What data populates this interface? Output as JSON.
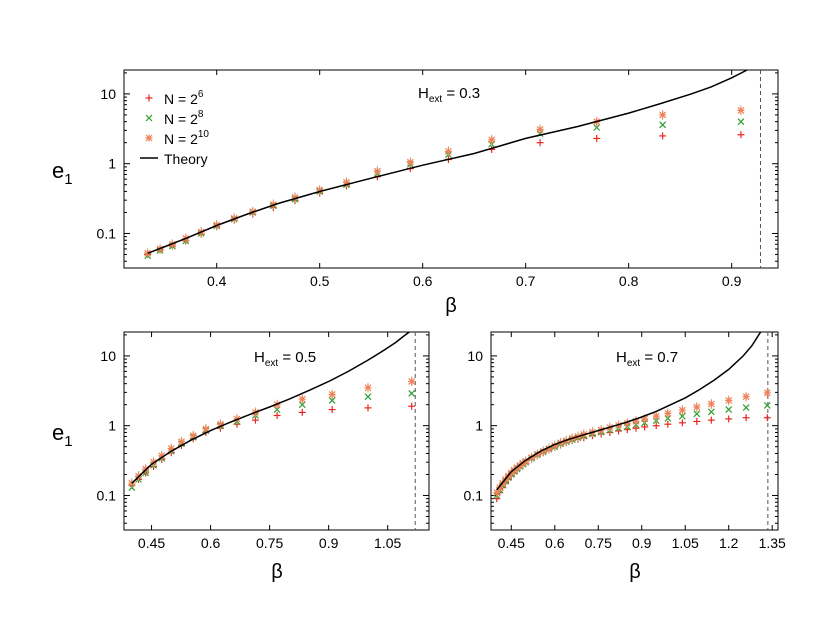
{
  "colors": {
    "n6": "#e8281e",
    "n8": "#2e9e2e",
    "n10": "#f08058",
    "theory": "#000000",
    "errorbar": "#c8a27a",
    "boundary": "#555555"
  },
  "ylabel": {
    "main": "e",
    "sub": "1"
  },
  "legend": [
    {
      "label": "N = 2",
      "sup": "6",
      "marker": "plus",
      "color": "#e8281e"
    },
    {
      "label": "N = 2",
      "sup": "8",
      "marker": "cross",
      "color": "#2e9e2e"
    },
    {
      "label": "N = 2",
      "sup": "10",
      "marker": "star",
      "color": "#f08058"
    },
    {
      "label": "Theory",
      "sup": "",
      "marker": "line",
      "color": "#000000"
    }
  ],
  "chart_data": [
    {
      "type": "scatter",
      "annotation": {
        "base": "H",
        "sub": "ext",
        "tail": " = 0.3"
      },
      "xlabel": "β",
      "ylabel": "e1",
      "yscale": "log",
      "xlim": [
        0.31,
        0.945
      ],
      "ylim": [
        0.032,
        22
      ],
      "xticks": [
        "0.4",
        "0.5",
        "0.6",
        "0.7",
        "0.8",
        "0.9"
      ],
      "yticks": [
        "0.1",
        "1",
        "10"
      ],
      "critical_beta": 0.928,
      "series": [
        {
          "name": "N = 2^6",
          "marker": "plus",
          "x": [
            0.333,
            0.345,
            0.357,
            0.37,
            0.385,
            0.4,
            0.417,
            0.435,
            0.455,
            0.476,
            0.5,
            0.526,
            0.556,
            0.588,
            0.625,
            0.667,
            0.714,
            0.769,
            0.833,
            0.909
          ],
          "y": [
            0.05,
            0.058,
            0.066,
            0.078,
            0.098,
            0.125,
            0.155,
            0.19,
            0.235,
            0.295,
            0.38,
            0.48,
            0.65,
            0.85,
            1.15,
            1.6,
            2.0,
            2.3,
            2.5,
            2.6
          ]
        },
        {
          "name": "N = 2^8",
          "marker": "cross",
          "x": [
            0.333,
            0.345,
            0.357,
            0.37,
            0.385,
            0.4,
            0.417,
            0.435,
            0.455,
            0.476,
            0.5,
            0.526,
            0.556,
            0.588,
            0.625,
            0.667,
            0.714,
            0.769,
            0.833,
            0.909
          ],
          "y": [
            0.048,
            0.057,
            0.066,
            0.078,
            0.1,
            0.128,
            0.16,
            0.2,
            0.25,
            0.31,
            0.4,
            0.5,
            0.72,
            0.98,
            1.35,
            1.9,
            2.7,
            3.3,
            3.6,
            4.0
          ]
        },
        {
          "name": "N = 2^10",
          "marker": "star",
          "x": [
            0.333,
            0.345,
            0.357,
            0.37,
            0.385,
            0.4,
            0.417,
            0.435,
            0.455,
            0.476,
            0.5,
            0.526,
            0.556,
            0.588,
            0.625,
            0.667,
            0.714,
            0.769,
            0.833,
            0.909
          ],
          "y": [
            0.052,
            0.06,
            0.07,
            0.085,
            0.105,
            0.132,
            0.165,
            0.205,
            0.26,
            0.33,
            0.42,
            0.54,
            0.78,
            1.05,
            1.5,
            2.2,
            3.1,
            4.0,
            5.0,
            5.8
          ]
        },
        {
          "name": "Theory",
          "marker": "line",
          "x": [
            0.333,
            0.35,
            0.37,
            0.4,
            0.43,
            0.46,
            0.5,
            0.55,
            0.6,
            0.65,
            0.7,
            0.75,
            0.8,
            0.83,
            0.86,
            0.88,
            0.9,
            0.915
          ],
          "y": [
            0.052,
            0.065,
            0.085,
            0.13,
            0.19,
            0.27,
            0.4,
            0.62,
            0.95,
            1.4,
            2.3,
            3.4,
            5.3,
            7.2,
            9.9,
            12.6,
            17.0,
            22
          ]
        }
      ]
    },
    {
      "type": "scatter",
      "annotation": {
        "base": "H",
        "sub": "ext",
        "tail": " = 0.5"
      },
      "xlabel": "β",
      "ylabel": "e1",
      "yscale": "log",
      "xlim": [
        0.38,
        1.155
      ],
      "ylim": [
        0.032,
        22
      ],
      "xticks": [
        "0.45",
        "0.6",
        "0.75",
        "0.9",
        "1.05"
      ],
      "yticks": [
        "0.1",
        "1",
        "10"
      ],
      "critical_beta": 1.12,
      "series": [
        {
          "name": "N = 2^6",
          "marker": "plus",
          "x": [
            0.4,
            0.417,
            0.435,
            0.455,
            0.476,
            0.5,
            0.526,
            0.556,
            0.588,
            0.625,
            0.667,
            0.714,
            0.769,
            0.833,
            0.909,
            1.0,
            1.111
          ],
          "y": [
            0.14,
            0.17,
            0.21,
            0.26,
            0.33,
            0.41,
            0.52,
            0.65,
            0.8,
            0.92,
            1.05,
            1.2,
            1.4,
            1.55,
            1.7,
            1.8,
            1.9
          ]
        },
        {
          "name": "N = 2^8",
          "marker": "cross",
          "x": [
            0.4,
            0.417,
            0.435,
            0.455,
            0.476,
            0.5,
            0.526,
            0.556,
            0.588,
            0.625,
            0.667,
            0.714,
            0.769,
            0.833,
            0.909,
            1.0,
            1.111
          ],
          "y": [
            0.13,
            0.17,
            0.21,
            0.27,
            0.34,
            0.43,
            0.55,
            0.68,
            0.85,
            1.0,
            1.15,
            1.4,
            1.7,
            2.0,
            2.3,
            2.6,
            2.9
          ]
        },
        {
          "name": "N = 2^10",
          "marker": "star",
          "x": [
            0.4,
            0.417,
            0.435,
            0.455,
            0.476,
            0.5,
            0.526,
            0.556,
            0.588,
            0.625,
            0.667,
            0.714,
            0.769,
            0.833,
            0.909,
            1.0,
            1.111
          ],
          "y": [
            0.15,
            0.19,
            0.24,
            0.3,
            0.37,
            0.47,
            0.59,
            0.72,
            0.9,
            1.05,
            1.25,
            1.55,
            2.0,
            2.4,
            2.8,
            3.5,
            4.3
          ]
        },
        {
          "name": "Theory",
          "marker": "line",
          "x": [
            0.4,
            0.45,
            0.5,
            0.55,
            0.6,
            0.65,
            0.7,
            0.75,
            0.8,
            0.85,
            0.9,
            0.95,
            1.0,
            1.04,
            1.07,
            1.09,
            1.105
          ],
          "y": [
            0.15,
            0.28,
            0.43,
            0.62,
            0.85,
            1.12,
            1.45,
            1.85,
            2.4,
            3.2,
            4.3,
            6.0,
            8.7,
            12.0,
            15.5,
            19.0,
            22
          ]
        }
      ]
    },
    {
      "type": "scatter",
      "annotation": {
        "base": "H",
        "sub": "ext",
        "tail": " = 0.7"
      },
      "xlabel": "β",
      "ylabel": "e1",
      "yscale": "log",
      "xlim": [
        0.38,
        1.37
      ],
      "ylim": [
        0.032,
        22
      ],
      "xticks": [
        "0.45",
        "0.6",
        "0.75",
        "0.9",
        "1.05",
        "1.2",
        "1.35"
      ],
      "yticks": [
        "0.1",
        "1",
        "10"
      ],
      "critical_beta": 1.335,
      "series": [
        {
          "name": "N = 2^6",
          "marker": "plus",
          "x": [
            0.4,
            0.41,
            0.42,
            0.43,
            0.44,
            0.45,
            0.46,
            0.47,
            0.48,
            0.49,
            0.5,
            0.52,
            0.54,
            0.56,
            0.58,
            0.6,
            0.62,
            0.64,
            0.66,
            0.68,
            0.7,
            0.73,
            0.76,
            0.79,
            0.82,
            0.85,
            0.88,
            0.91,
            0.95,
            0.99,
            1.04,
            1.09,
            1.14,
            1.2,
            1.26,
            1.333
          ],
          "y": [
            0.09,
            0.11,
            0.13,
            0.15,
            0.17,
            0.19,
            0.21,
            0.23,
            0.25,
            0.27,
            0.29,
            0.33,
            0.37,
            0.41,
            0.45,
            0.49,
            0.53,
            0.57,
            0.61,
            0.64,
            0.67,
            0.72,
            0.76,
            0.8,
            0.84,
            0.88,
            0.92,
            0.96,
            1.0,
            1.05,
            1.1,
            1.15,
            1.2,
            1.25,
            1.3,
            1.3
          ]
        },
        {
          "name": "N = 2^8",
          "marker": "cross",
          "x": [
            0.4,
            0.41,
            0.42,
            0.43,
            0.44,
            0.45,
            0.46,
            0.47,
            0.48,
            0.49,
            0.5,
            0.52,
            0.54,
            0.56,
            0.58,
            0.6,
            0.62,
            0.64,
            0.66,
            0.68,
            0.7,
            0.73,
            0.76,
            0.79,
            0.82,
            0.85,
            0.88,
            0.91,
            0.95,
            0.99,
            1.04,
            1.09,
            1.14,
            1.2,
            1.26,
            1.333
          ],
          "y": [
            0.1,
            0.12,
            0.14,
            0.16,
            0.18,
            0.2,
            0.22,
            0.24,
            0.26,
            0.28,
            0.3,
            0.34,
            0.38,
            0.42,
            0.46,
            0.5,
            0.55,
            0.59,
            0.63,
            0.67,
            0.71,
            0.76,
            0.81,
            0.86,
            0.92,
            0.97,
            1.03,
            1.1,
            1.18,
            1.27,
            1.37,
            1.48,
            1.58,
            1.7,
            1.82,
            1.95
          ]
        },
        {
          "name": "N = 2^10",
          "marker": "star",
          "x": [
            0.4,
            0.41,
            0.42,
            0.43,
            0.44,
            0.45,
            0.46,
            0.47,
            0.48,
            0.49,
            0.5,
            0.52,
            0.54,
            0.56,
            0.58,
            0.6,
            0.62,
            0.64,
            0.66,
            0.68,
            0.7,
            0.73,
            0.76,
            0.79,
            0.82,
            0.85,
            0.88,
            0.91,
            0.95,
            0.99,
            1.04,
            1.09,
            1.14,
            1.2,
            1.26,
            1.333
          ],
          "y": [
            0.11,
            0.13,
            0.15,
            0.17,
            0.19,
            0.21,
            0.23,
            0.25,
            0.27,
            0.29,
            0.31,
            0.35,
            0.39,
            0.43,
            0.47,
            0.52,
            0.57,
            0.61,
            0.66,
            0.7,
            0.75,
            0.81,
            0.87,
            0.94,
            1.01,
            1.08,
            1.16,
            1.25,
            1.37,
            1.5,
            1.67,
            1.85,
            2.05,
            2.3,
            2.6,
            2.95
          ]
        },
        {
          "name": "Theory",
          "marker": "line",
          "x": [
            0.4,
            0.45,
            0.5,
            0.55,
            0.6,
            0.65,
            0.7,
            0.75,
            0.8,
            0.85,
            0.9,
            0.95,
            1.0,
            1.05,
            1.1,
            1.15,
            1.2,
            1.25,
            1.28,
            1.31
          ],
          "y": [
            0.12,
            0.22,
            0.32,
            0.43,
            0.54,
            0.64,
            0.74,
            0.85,
            0.98,
            1.13,
            1.33,
            1.6,
            2.0,
            2.5,
            3.3,
            4.5,
            6.4,
            10.0,
            14.0,
            22
          ]
        }
      ]
    }
  ]
}
